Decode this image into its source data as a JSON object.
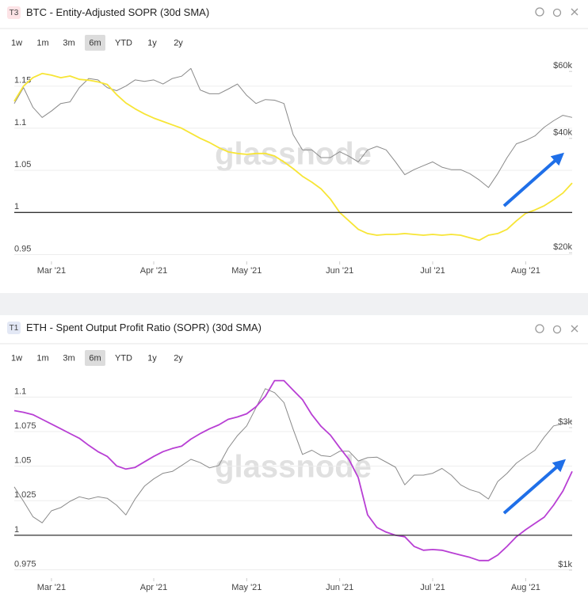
{
  "chart_data": [
    {
      "type": "line",
      "badge": "T3",
      "title": "BTC - Entity-Adjusted SOPR (30d SMA)",
      "ranges": [
        "1w",
        "1m",
        "3m",
        "6m",
        "YTD",
        "1y",
        "2y"
      ],
      "selected_range": "6m",
      "watermark": "glassnode",
      "categories": [
        null,
        null,
        null,
        null,
        "Mar '21",
        null,
        null,
        null,
        null,
        null,
        null,
        null,
        null,
        null,
        null,
        "Apr '21",
        null,
        null,
        null,
        null,
        null,
        null,
        null,
        null,
        null,
        "May '21",
        null,
        null,
        null,
        null,
        null,
        null,
        null,
        null,
        null,
        "Jun '21",
        null,
        null,
        null,
        null,
        null,
        null,
        null,
        null,
        null,
        "Jul '21",
        null,
        null,
        null,
        null,
        null,
        null,
        null,
        null,
        null,
        "Aug '21",
        null,
        null,
        null,
        null,
        null
      ],
      "series": [
        {
          "color": "#f7e536",
          "values": [
            1.132,
            1.15,
            1.16,
            1.165,
            1.163,
            1.16,
            1.162,
            1.158,
            1.157,
            1.155,
            1.152,
            1.14,
            1.13,
            1.123,
            1.117,
            1.112,
            1.108,
            1.104,
            1.1,
            1.094,
            1.088,
            1.083,
            1.077,
            1.072,
            1.07,
            1.069,
            1.07,
            1.07,
            1.067,
            1.06,
            1.052,
            1.043,
            1.036,
            1.028,
            1.016,
            1.0,
            0.99,
            0.98,
            0.975,
            0.973,
            0.974,
            0.974,
            0.975,
            0.974,
            0.973,
            0.974,
            0.973,
            0.974,
            0.973,
            0.97,
            0.967,
            0.973,
            0.975,
            0.98,
            0.99,
            0.999,
            1.003,
            1.008,
            1.015,
            1.023,
            1.035
          ]
        },
        {
          "color": "#8a8a8a",
          "axis": "y2",
          "values": [
            49400,
            54400,
            48300,
            45400,
            47200,
            49400,
            49900,
            54400,
            57500,
            57000,
            54400,
            53400,
            54900,
            57000,
            56500,
            57000,
            55600,
            57500,
            58300,
            61100,
            53600,
            52400,
            52400,
            53900,
            55600,
            51900,
            49400,
            50600,
            50400,
            49400,
            40900,
            37300,
            37300,
            35600,
            35600,
            36900,
            35900,
            34700,
            37300,
            38100,
            37300,
            34700,
            32100,
            33100,
            33900,
            34700,
            33600,
            33100,
            33100,
            32300,
            31100,
            29700,
            32300,
            35600,
            38700,
            39500,
            40600,
            42800,
            44500,
            46000,
            45400
          ]
        }
      ],
      "ylim": [
        0.942,
        1.177
      ],
      "yticks": [
        0.95,
        1,
        1.05,
        1.1,
        1.15
      ],
      "baseline": 1,
      "y2lim": [
        19000,
        63000
      ],
      "y2_log": true,
      "y2ticks": [
        {
          "value": 20000,
          "label": "$20k"
        },
        {
          "value": 40000,
          "label": "$40k"
        },
        {
          "value": 60000,
          "label": "$60k"
        }
      ],
      "grid": true
    },
    {
      "type": "line",
      "badge": "T1",
      "title": "ETH - Spent Output Profit Ratio (SOPR) (30d SMA)",
      "ranges": [
        "1w",
        "1m",
        "3m",
        "6m",
        "YTD",
        "1y",
        "2y"
      ],
      "selected_range": "6m",
      "watermark": "glassnode",
      "categories": [
        null,
        null,
        null,
        null,
        "Mar '21",
        null,
        null,
        null,
        null,
        null,
        null,
        null,
        null,
        null,
        null,
        "Apr '21",
        null,
        null,
        null,
        null,
        null,
        null,
        null,
        null,
        null,
        "May '21",
        null,
        null,
        null,
        null,
        null,
        null,
        null,
        null,
        null,
        "Jun '21",
        null,
        null,
        null,
        null,
        null,
        null,
        null,
        null,
        null,
        "Jul '21",
        null,
        null,
        null,
        null,
        null,
        null,
        null,
        null,
        null,
        "Aug '21",
        null,
        null,
        null,
        null,
        null
      ],
      "series": [
        {
          "color": "#b83fd4",
          "values": [
            1.0902,
            1.089,
            1.0873,
            1.0839,
            1.0805,
            1.0771,
            1.0736,
            1.0702,
            1.0651,
            1.0605,
            1.0571,
            1.0502,
            1.0479,
            1.0491,
            1.0531,
            1.0571,
            1.0605,
            1.0628,
            1.0645,
            1.0696,
            1.0736,
            1.0771,
            1.0799,
            1.0839,
            1.0856,
            1.0879,
            1.093,
            1.1005,
            1.1119,
            1.1119,
            1.105,
            1.0982,
            1.0873,
            1.0788,
            1.0725,
            1.0634,
            1.0548,
            1.0417,
            1.0148,
            1.0057,
            1.0023,
            1.0,
            0.9989,
            0.992,
            0.9892,
            0.9897,
            0.9892,
            0.9874,
            0.9857,
            0.984,
            0.9817,
            0.9817,
            0.9857,
            0.992,
            0.9989,
            1.004,
            1.0086,
            1.0131,
            1.0217,
            1.032,
            1.0462
          ]
        },
        {
          "color": "#8a8a8a",
          "axis": "y2",
          "values": [
            1900,
            1700,
            1510,
            1440,
            1580,
            1620,
            1700,
            1760,
            1730,
            1760,
            1740,
            1650,
            1530,
            1730,
            1910,
            2020,
            2110,
            2140,
            2240,
            2350,
            2290,
            2200,
            2240,
            2560,
            2820,
            3040,
            3500,
            4050,
            3930,
            3640,
            2960,
            2440,
            2520,
            2420,
            2400,
            2500,
            2500,
            2320,
            2380,
            2390,
            2300,
            2210,
            1930,
            2080,
            2080,
            2110,
            2190,
            2080,
            1930,
            1860,
            1820,
            1730,
            1980,
            2110,
            2280,
            2400,
            2520,
            2790,
            3040,
            3090,
            3150
          ]
        }
      ],
      "ylim": [
        0.969,
        1.118
      ],
      "yticks": [
        0.975,
        1,
        1.025,
        1.05,
        1.075,
        1.1
      ],
      "baseline": 1,
      "y2lim": [
        940,
        4600
      ],
      "y2_log": true,
      "y2ticks": [
        {
          "value": 1000,
          "label": "$1k"
        },
        {
          "value": 3000,
          "label": "$3k"
        }
      ],
      "grid": true
    }
  ]
}
